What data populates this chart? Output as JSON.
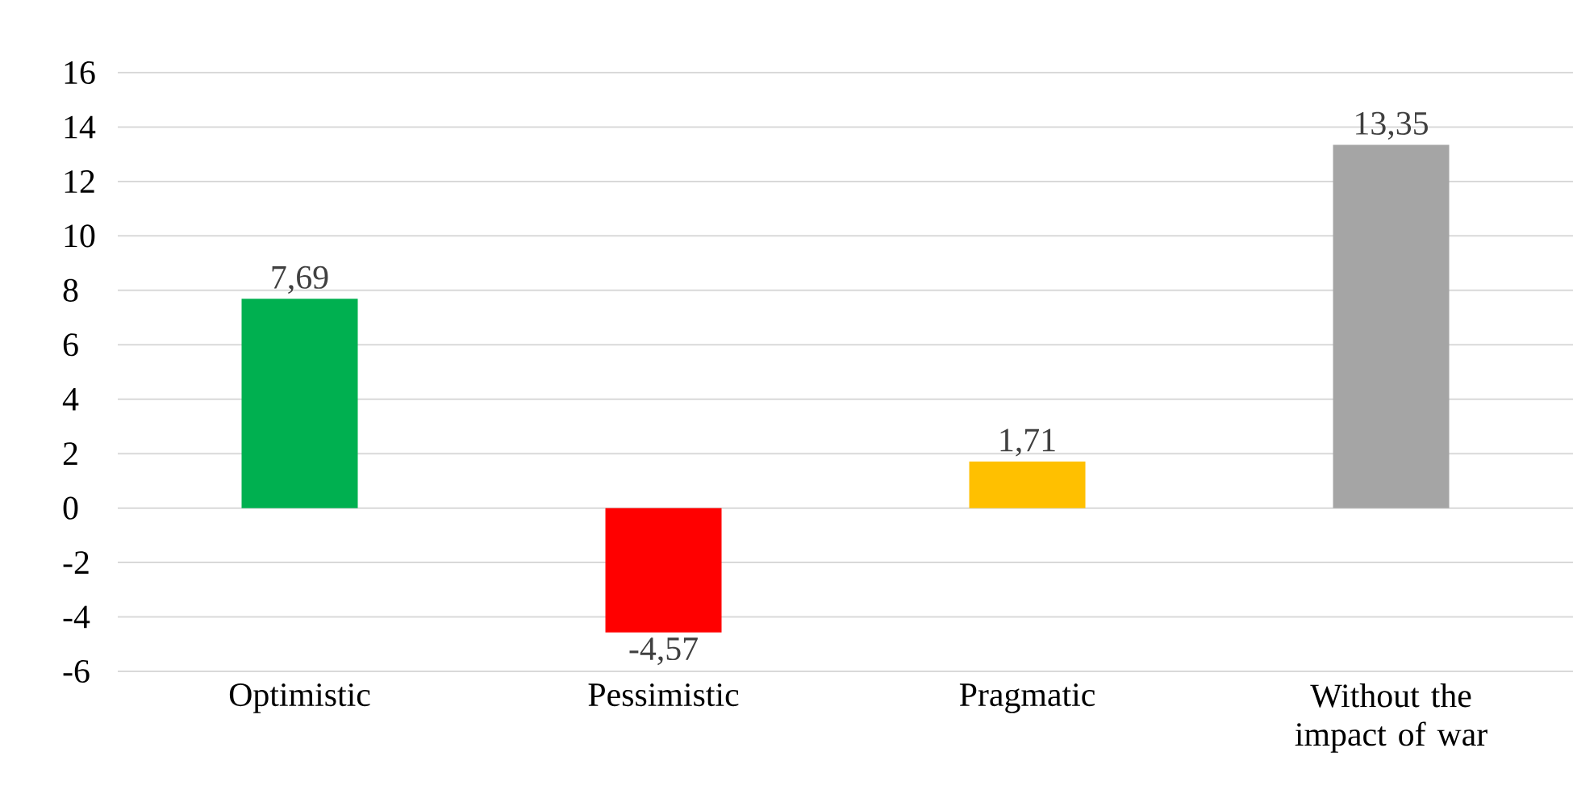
{
  "chart_data": {
    "type": "bar",
    "categories": [
      "Optimistic",
      "Pessimistic",
      "Pragmatic",
      "Without the impact of war"
    ],
    "values": [
      7.69,
      -4.57,
      1.71,
      13.35
    ],
    "colors": [
      "#00b050",
      "#ff0000",
      "#ffc000",
      "#a5a5a5"
    ],
    "value_labels": [
      "7,69",
      "-4,57",
      "1,71",
      "13,35"
    ],
    "ylim": [
      -6,
      16
    ],
    "yticks": [
      -6,
      -4,
      -2,
      0,
      2,
      4,
      6,
      8,
      10,
      12,
      14,
      16
    ],
    "grid": "y"
  }
}
